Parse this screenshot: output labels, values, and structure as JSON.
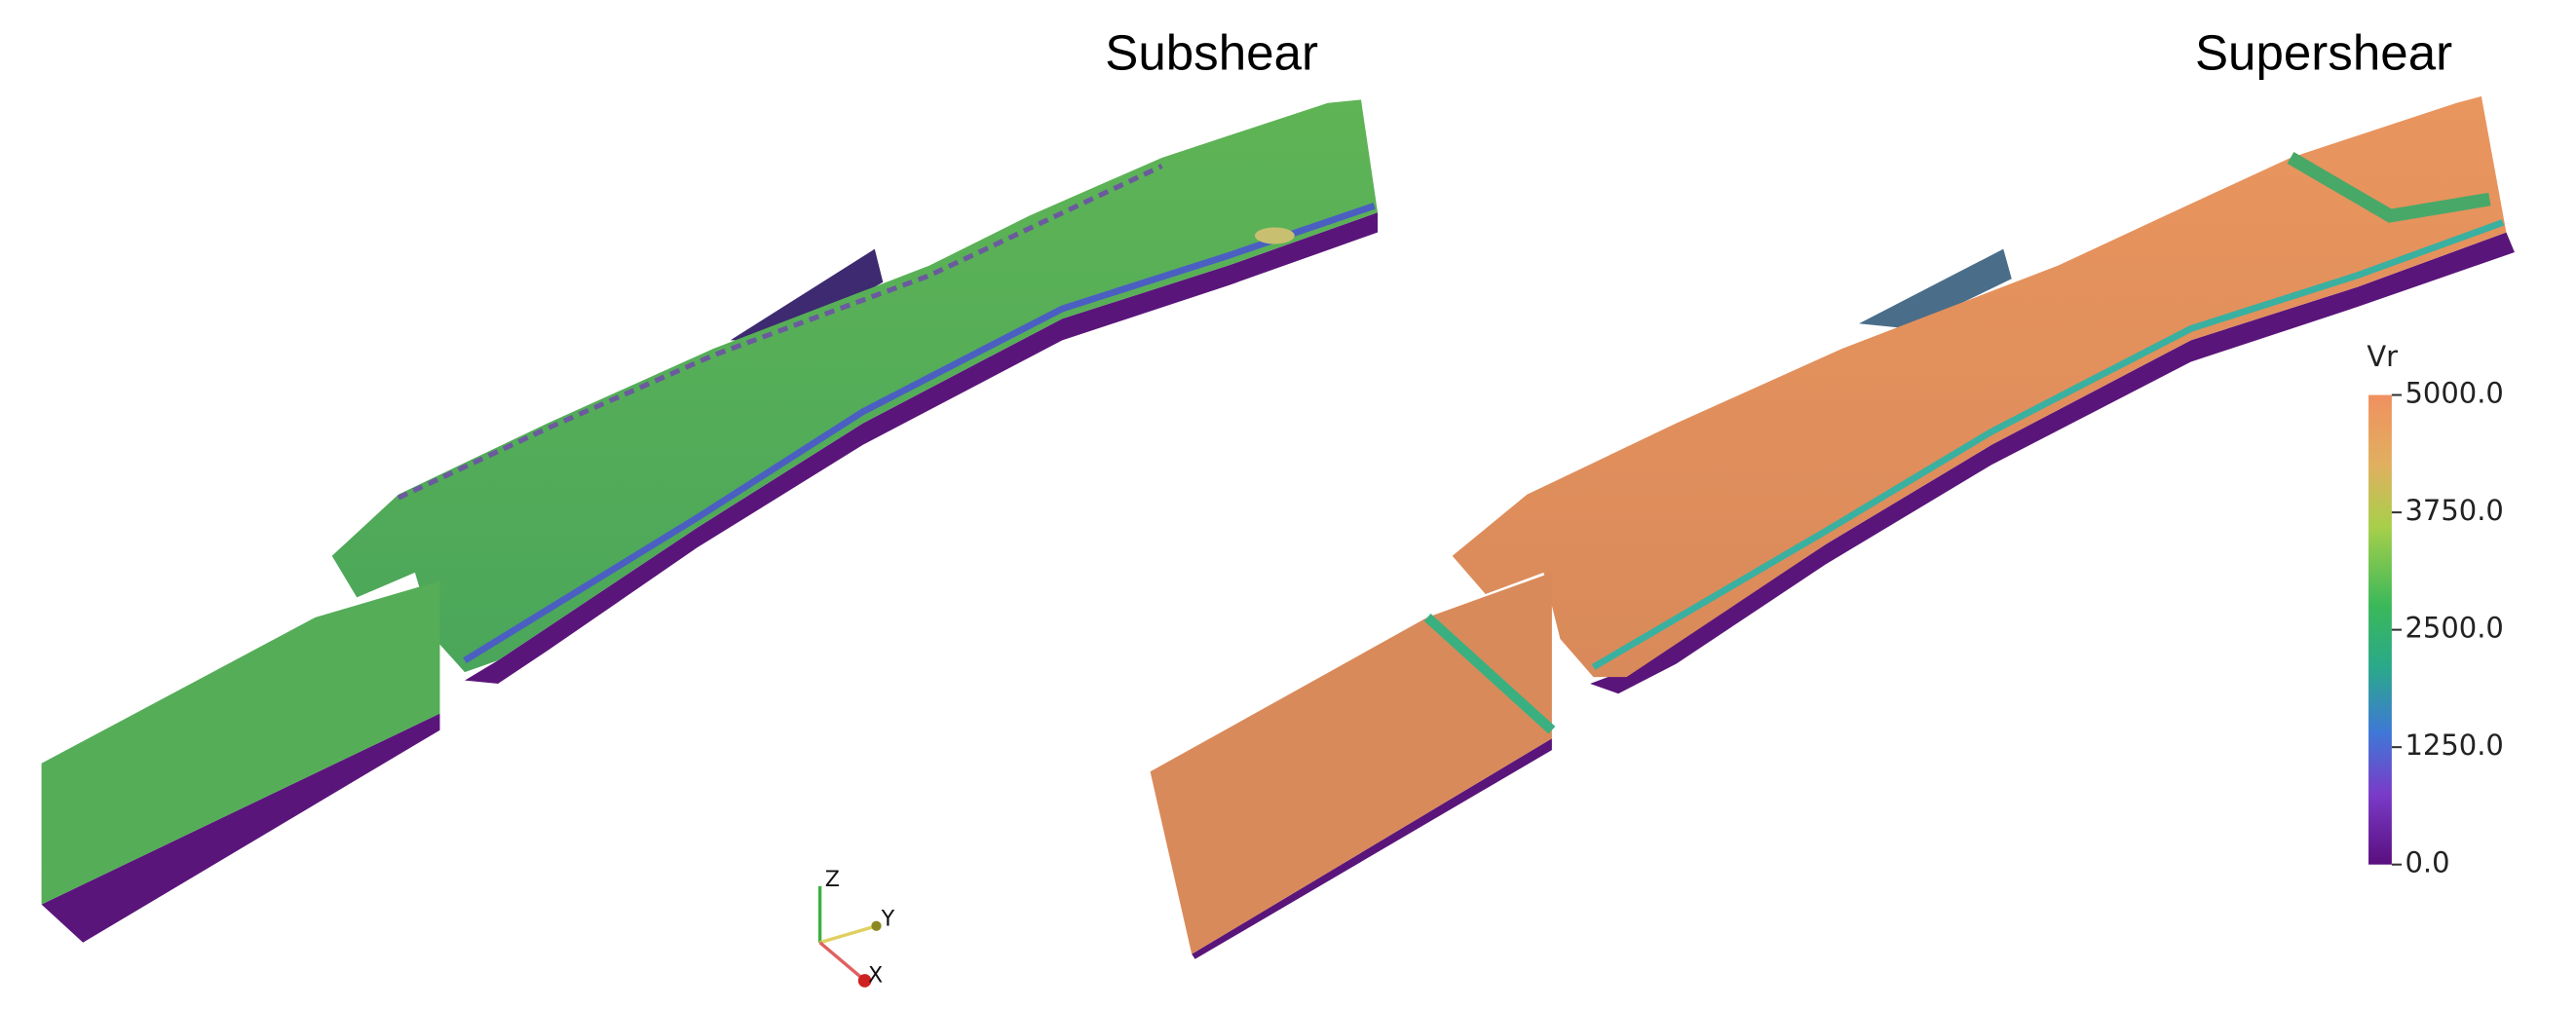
{
  "panels": [
    {
      "title": "Subshear"
    },
    {
      "title": "Supershear"
    }
  ],
  "colorbar": {
    "title": "Vr",
    "range": [
      0,
      5000
    ],
    "ticks": [
      {
        "value": 5000,
        "label": "5000.0"
      },
      {
        "value": 3750,
        "label": "3750.0"
      },
      {
        "value": 2500,
        "label": "2500.0"
      },
      {
        "value": 1250,
        "label": "1250.0"
      },
      {
        "value": 0,
        "label": "0.0"
      }
    ]
  },
  "axes_triad": {
    "z": "Z",
    "y": "Y",
    "x": "X"
  }
}
